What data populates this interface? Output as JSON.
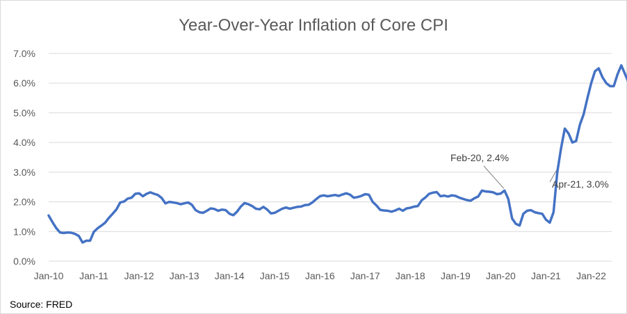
{
  "chart_data": {
    "type": "line",
    "title": "Year-Over-Year Inflation of Core CPI",
    "xlabel": "",
    "ylabel": "",
    "source": "Source: FRED",
    "ylim": [
      0,
      0.07
    ],
    "y_ticks": [
      "0.0%",
      "1.0%",
      "2.0%",
      "3.0%",
      "4.0%",
      "5.0%",
      "6.0%",
      "7.0%"
    ],
    "x_ticks": [
      "Jan-10",
      "Jan-11",
      "Jan-12",
      "Jan-13",
      "Jan-14",
      "Jan-15",
      "Jan-16",
      "Jan-17",
      "Jan-18",
      "Jan-19",
      "Jan-20",
      "Jan-21",
      "Jan-22"
    ],
    "grid": true,
    "legend": "none",
    "line_color": "#4472c4",
    "x_start": "Jan-10",
    "series": [
      {
        "values": [
          0.0154,
          0.0132,
          0.0112,
          0.0097,
          0.0095,
          0.0097,
          0.0096,
          0.0092,
          0.0085,
          0.0063,
          0.0069,
          0.0069,
          0.0099,
          0.0111,
          0.012,
          0.013,
          0.0146,
          0.016,
          0.0175,
          0.0198,
          0.0201,
          0.0211,
          0.0214,
          0.0227,
          0.0229,
          0.0219,
          0.0227,
          0.0232,
          0.0227,
          0.0223,
          0.0213,
          0.0195,
          0.02,
          0.0198,
          0.0196,
          0.0192,
          0.0195,
          0.0198,
          0.019,
          0.0172,
          0.0165,
          0.0163,
          0.017,
          0.0178,
          0.0176,
          0.017,
          0.0174,
          0.0172,
          0.016,
          0.0155,
          0.0167,
          0.0184,
          0.0196,
          0.0192,
          0.0186,
          0.0177,
          0.0175,
          0.0183,
          0.0174,
          0.0161,
          0.0163,
          0.017,
          0.0177,
          0.0181,
          0.0177,
          0.018,
          0.0183,
          0.0184,
          0.0189,
          0.019,
          0.0198,
          0.0209,
          0.0219,
          0.0222,
          0.0219,
          0.0221,
          0.0223,
          0.022,
          0.0225,
          0.0229,
          0.0224,
          0.0214,
          0.0216,
          0.022,
          0.0226,
          0.0224,
          0.02,
          0.0188,
          0.0173,
          0.0171,
          0.017,
          0.0167,
          0.0171,
          0.0177,
          0.017,
          0.0178,
          0.018,
          0.0184,
          0.0186,
          0.0205,
          0.0215,
          0.0227,
          0.0231,
          0.0233,
          0.0219,
          0.0221,
          0.0218,
          0.0222,
          0.022,
          0.0214,
          0.021,
          0.0206,
          0.0204,
          0.0212,
          0.0218,
          0.0238,
          0.0235,
          0.0234,
          0.0232,
          0.0226,
          0.0228,
          0.0238,
          0.021,
          0.0144,
          0.0126,
          0.012,
          0.016,
          0.017,
          0.0172,
          0.0165,
          0.0162,
          0.016,
          0.014,
          0.013,
          0.0165,
          0.03,
          0.038,
          0.0447,
          0.043,
          0.04,
          0.0405,
          0.046,
          0.0495,
          0.055,
          0.06,
          0.064,
          0.065,
          0.062,
          0.06,
          0.059,
          0.059,
          0.063,
          0.066,
          0.063,
          0.06
        ]
      }
    ],
    "annotations": [
      {
        "label": "Feb-20, 2.4%",
        "month_index": 121
      },
      {
        "label": "Apr-21, 3.0%",
        "month_index": 135
      }
    ]
  }
}
